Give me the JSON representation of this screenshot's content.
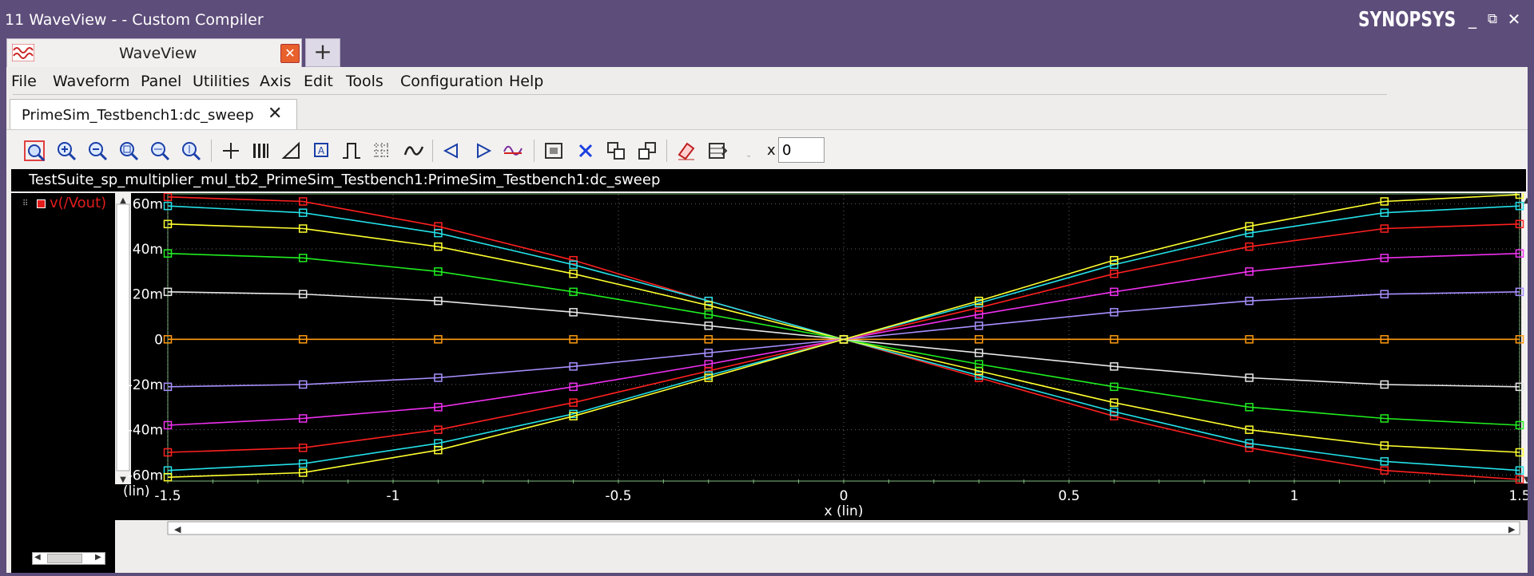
{
  "window": {
    "title": "11 WaveView -  - Custom Compiler",
    "brand": "SYNOPSYS",
    "controls": [
      "_",
      "⧉",
      "✕"
    ]
  },
  "app_tab": {
    "label": "WaveView",
    "close": "✕",
    "new": "+"
  },
  "menu": [
    "File",
    "Waveform",
    "Panel",
    "Utilities",
    "Axis",
    "Edit",
    "Tools",
    "Configuration",
    "Help"
  ],
  "doc_tab": {
    "label": "PrimeSim_Testbench1:dc_sweep",
    "close": "✕"
  },
  "toolbar": {
    "x_label": "x",
    "x_value": "0",
    "icons": [
      "zoom-fit-icon",
      "zoom-in-icon",
      "zoom-out-icon",
      "zoom-area-icon",
      "zoom-x-icon",
      "zoom-y-icon",
      "crosshair-icon",
      "stack-icon",
      "measure-icon",
      "marker-icon",
      "pulse-icon",
      "grid-icon",
      "waveform-icon",
      "prev-icon",
      "next-icon",
      "edge-icon",
      "fit-panel-icon",
      "delete-icon",
      "copy-icon",
      "paste-icon",
      "eraser-icon",
      "panel-config-icon"
    ]
  },
  "panel_path": "TestSuite_sp_multiplier_mul_tb2_PrimeSim_Testbench1:PrimeSim_Testbench1:dc_sweep",
  "signal_list": {
    "label": "v(/Vout)"
  },
  "chart_data": {
    "type": "line",
    "xlabel": "x (lin)",
    "ylabel_unit": "(lin)",
    "xlim": [
      -1.5,
      1.5
    ],
    "ylim": [
      -0.062,
      0.064
    ],
    "xticks": [
      -1.5,
      -1,
      -0.5,
      0,
      0.5,
      1,
      1.5
    ],
    "xtick_labels": [
      "-1.5",
      "-1",
      "-0.5",
      "0",
      "0.5",
      "1",
      "1.5"
    ],
    "yticks": [
      -0.06,
      -0.04,
      -0.02,
      0,
      0.02,
      0.04,
      0.06
    ],
    "ytick_labels": [
      "-60m",
      "-40m",
      "-20m",
      "0",
      "20m",
      "40m",
      "60m"
    ],
    "grid": true,
    "background": "#000000",
    "x": [
      -1.5,
      -1.2,
      -0.9,
      -0.6,
      -0.3,
      0,
      0.3,
      0.6,
      0.9,
      1.2,
      1.5
    ],
    "series": [
      {
        "color": "#ff2020",
        "values": [
          0.063,
          0.061,
          0.05,
          0.035,
          0.017,
          0,
          -0.017,
          -0.034,
          -0.048,
          -0.058,
          -0.062
        ]
      },
      {
        "color": "#24e0e8",
        "values": [
          0.059,
          0.056,
          0.047,
          0.033,
          0.017,
          0,
          -0.016,
          -0.032,
          -0.046,
          -0.054,
          -0.058
        ]
      },
      {
        "color": "#ffff30",
        "values": [
          0.051,
          0.049,
          0.041,
          0.029,
          0.015,
          0,
          -0.014,
          -0.028,
          -0.04,
          -0.047,
          -0.05
        ]
      },
      {
        "color": "#20ee20",
        "values": [
          0.038,
          0.036,
          0.03,
          0.021,
          0.011,
          0,
          -0.011,
          -0.021,
          -0.03,
          -0.035,
          -0.038
        ]
      },
      {
        "color": "#e8e8e8",
        "values": [
          0.021,
          0.02,
          0.017,
          0.012,
          0.006,
          0,
          -0.006,
          -0.012,
          -0.017,
          -0.02,
          -0.021
        ]
      },
      {
        "color": "#ff9a10",
        "values": [
          0,
          0,
          0,
          0,
          0,
          0,
          0,
          0,
          0,
          0,
          0
        ]
      },
      {
        "color": "#a890ff",
        "values": [
          -0.021,
          -0.02,
          -0.017,
          -0.012,
          -0.006,
          0,
          0.006,
          0.012,
          0.017,
          0.02,
          0.021
        ]
      },
      {
        "color": "#f030f0",
        "values": [
          -0.038,
          -0.035,
          -0.03,
          -0.021,
          -0.011,
          0,
          0.011,
          0.021,
          0.03,
          0.036,
          0.038
        ]
      },
      {
        "color": "#ff2020",
        "values": [
          -0.05,
          -0.048,
          -0.04,
          -0.028,
          -0.014,
          0,
          0.014,
          0.029,
          0.041,
          0.049,
          0.051
        ]
      },
      {
        "color": "#24e0e8",
        "values": [
          -0.058,
          -0.055,
          -0.046,
          -0.033,
          -0.016,
          0,
          0.016,
          0.033,
          0.047,
          0.056,
          0.059
        ]
      },
      {
        "color": "#ffff30",
        "values": [
          -0.061,
          -0.059,
          -0.049,
          -0.034,
          -0.017,
          0,
          0.017,
          0.035,
          0.05,
          0.061,
          0.064
        ]
      }
    ]
  }
}
